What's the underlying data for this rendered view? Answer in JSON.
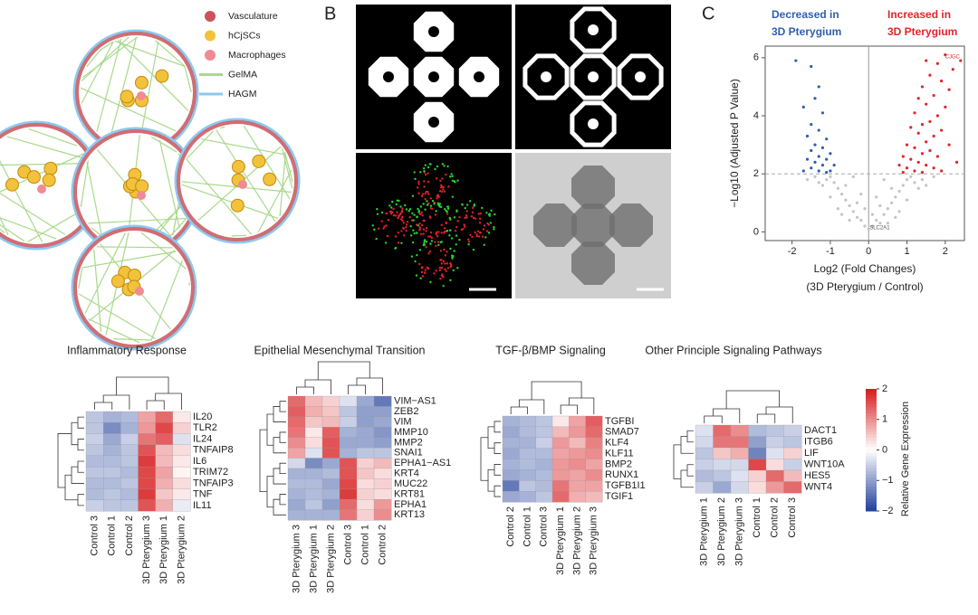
{
  "panel_labels": [
    "B",
    "C"
  ],
  "schematic_legend": [
    "Vasculature",
    "hCjSCs",
    "Macrophages",
    "GelMA",
    "HAGM"
  ],
  "volcano": {
    "type": "scatter",
    "annotations": {
      "decreased": [
        "Decreased in",
        "3D Pterygium"
      ],
      "increased": [
        "Increased in",
        "3D Pterygium"
      ]
    },
    "gene_labels": [
      "CJGC",
      "SLC2A1"
    ],
    "xlabel": [
      "Log2 (Fold Changes)",
      "(3D Pterygium / Control)"
    ],
    "ylabel": "−Log10 (Adjusted P Value)",
    "xlim": [
      -2.7,
      2.5
    ],
    "ylim": [
      -0.3,
      6.4
    ],
    "xticks": [
      -2,
      -1,
      0,
      1,
      2
    ],
    "yticks": [
      0,
      2,
      4,
      6
    ],
    "threshold": 2,
    "groups": [
      {
        "color": "#2f5fb0",
        "x": [
          -1.9,
          -1.5,
          -1.3,
          -1.4,
          -1.7,
          -1.2,
          -1.5,
          -1.3,
          -1.6,
          -1.1,
          -1.4,
          -1.2,
          -1.5,
          -1.0,
          -1.3,
          -1.6,
          -1.1,
          -1.4,
          -1.2,
          -0.9,
          -1.5,
          -1.3,
          -1.0,
          -1.7,
          -1.1
        ],
        "y": [
          5.9,
          5.7,
          5.0,
          4.6,
          4.3,
          4.1,
          3.7,
          3.5,
          3.3,
          3.2,
          3.0,
          2.9,
          2.8,
          2.7,
          2.6,
          2.5,
          2.5,
          2.4,
          2.3,
          2.3,
          2.2,
          2.1,
          2.1,
          2.1,
          2.05
        ]
      },
      {
        "color": "#e0262a",
        "x": [
          2.0,
          1.8,
          2.2,
          1.6,
          1.9,
          1.4,
          2.1,
          1.7,
          1.3,
          1.5,
          2.0,
          1.2,
          1.8,
          1.6,
          1.4,
          1.1,
          1.9,
          1.3,
          1.7,
          1.5,
          1.0,
          2.1,
          1.2,
          1.6,
          1.4,
          0.9,
          1.8,
          1.1,
          1.3,
          1.5,
          0.8,
          1.0,
          1.7,
          1.2,
          1.4,
          0.9,
          2.3,
          1.9,
          2.4,
          1.5
        ],
        "y": [
          6.1,
          5.8,
          5.6,
          5.4,
          5.2,
          5.0,
          4.9,
          4.7,
          4.6,
          4.4,
          4.3,
          4.1,
          4.0,
          3.8,
          3.7,
          3.6,
          3.5,
          3.4,
          3.3,
          3.1,
          3.0,
          3.0,
          2.9,
          2.8,
          2.7,
          2.6,
          2.6,
          2.5,
          2.4,
          2.3,
          2.3,
          2.2,
          2.2,
          2.1,
          2.05,
          2.05,
          2.4,
          2.1,
          5.9,
          5.9
        ]
      },
      {
        "color": "#c4c4c4",
        "x": [
          0,
          0.1,
          -0.1,
          0.2,
          -0.2,
          0.3,
          -0.3,
          0.4,
          -0.4,
          0.5,
          -0.5,
          0.6,
          -0.6,
          0.7,
          -0.7,
          0.8,
          -0.8,
          0.9,
          -0.9,
          1.0,
          -1.0,
          1.1,
          -1.1,
          1.2,
          -1.2,
          1.3,
          -1.3,
          1.4,
          -1.4,
          1.5,
          0.5,
          -0.5,
          0.8,
          -0.8,
          1.0,
          -1.0,
          0.3,
          -0.3,
          0.6,
          -0.6,
          0.2,
          -0.2,
          0.4,
          -0.4,
          1.7,
          -1.6,
          0.7,
          -0.7,
          0.1,
          -0.1
        ],
        "y": [
          0.1,
          0.2,
          0.2,
          0.4,
          0.4,
          0.3,
          0.5,
          0.6,
          0.7,
          0.8,
          0.9,
          1.0,
          1.1,
          1.2,
          1.3,
          1.4,
          1.5,
          1.6,
          1.7,
          1.8,
          1.9,
          1.9,
          1.8,
          1.7,
          1.6,
          1.5,
          1.7,
          1.8,
          1.9,
          1.6,
          0.3,
          0.4,
          0.7,
          0.8,
          1.1,
          1.2,
          0.9,
          1.0,
          1.5,
          1.6,
          1.2,
          1.3,
          1.8,
          1.9,
          1.9,
          1.8,
          0.5,
          0.6,
          0.6,
          0.8
        ]
      }
    ]
  },
  "heatmaps": [
    {
      "title": "Inflammatory Response",
      "columns": [
        "Control 3",
        "Control 1",
        "Control 2",
        "3D Pterygium 3",
        "3D Pterygium 1",
        "3D Pterygium 2"
      ],
      "rows": [
        "IL20",
        "TLR2",
        "IL24",
        "TNFAIP8",
        "IL6",
        "TRIM72",
        "TNFAIP3",
        "TNF",
        "IL11"
      ],
      "values": [
        [
          -0.6,
          -0.8,
          -0.7,
          0.8,
          1.3,
          0.2
        ],
        [
          -0.6,
          -1.2,
          -0.8,
          0.9,
          1.6,
          0.4
        ],
        [
          -0.5,
          -0.9,
          -0.5,
          1.2,
          1.4,
          -0.3
        ],
        [
          -0.6,
          -0.8,
          -0.6,
          1.5,
          0.6,
          0.3
        ],
        [
          -0.7,
          -0.7,
          -0.6,
          1.7,
          0.6,
          0.2
        ],
        [
          -0.6,
          -0.6,
          -0.7,
          1.6,
          0.8,
          0.1
        ],
        [
          -0.7,
          -0.7,
          -0.6,
          1.6,
          0.7,
          0.3
        ],
        [
          -0.7,
          -0.6,
          -0.7,
          1.7,
          0.5,
          0.2
        ],
        [
          -0.5,
          -0.6,
          -0.6,
          1.5,
          0.7,
          -0.2
        ]
      ]
    },
    {
      "title": "Epithelial Mesenchymal Transition",
      "columns": [
        "3D Pterygium 3",
        "3D Pterygium 1",
        "3D Pterygium 2",
        "Control 3",
        "Control 1",
        "Control 2"
      ],
      "rows": [
        "VIM−AS1",
        "ZEB2",
        "VIM",
        "MMP10",
        "MMP2",
        "SNAI1",
        "EPHA1−AS1",
        "KRT4",
        "MUC22",
        "KRT81",
        "EPHA1",
        "KRT13"
      ],
      "values": [
        [
          1.3,
          0.6,
          0.4,
          -0.3,
          -0.9,
          -1.4
        ],
        [
          1.4,
          0.7,
          0.5,
          -0.6,
          -1.0,
          -1.0
        ],
        [
          1.3,
          0.5,
          0.6,
          -0.5,
          -1.0,
          -0.9
        ],
        [
          1.2,
          0.2,
          1.4,
          -0.8,
          -0.9,
          -1.1
        ],
        [
          1.0,
          0.3,
          1.5,
          -0.9,
          -0.9,
          -1.0
        ],
        [
          0.8,
          -0.3,
          1.5,
          -0.8,
          -0.6,
          -0.6
        ],
        [
          -0.4,
          -1.2,
          -0.9,
          1.5,
          0.4,
          0.6
        ],
        [
          -0.8,
          -0.8,
          -0.7,
          1.5,
          0.5,
          0.3
        ],
        [
          -0.7,
          -0.7,
          -0.9,
          1.6,
          0.3,
          0.4
        ],
        [
          -0.8,
          -0.7,
          -0.8,
          1.7,
          0.4,
          0.3
        ],
        [
          -0.9,
          -0.6,
          -1.0,
          1.3,
          0.3,
          0.9
        ],
        [
          -0.8,
          -0.8,
          -0.8,
          1.2,
          0.4,
          1.0
        ]
      ]
    },
    {
      "title": "TGF-β/BMP Signaling",
      "columns": [
        "Control 2",
        "Control 1",
        "Control 3",
        "3D Pterygium 1",
        "3D Pterygium 2",
        "3D Pterygium 3"
      ],
      "rows": [
        "TGFBI",
        "SMAD7",
        "KLF4",
        "KLF11",
        "BMP2",
        "RUNX1",
        "TGFB1I1",
        "TGIF1"
      ],
      "values": [
        [
          -0.8,
          -0.7,
          -0.6,
          0.2,
          0.8,
          1.4
        ],
        [
          -0.9,
          -0.7,
          -0.6,
          0.6,
          0.9,
          1.3
        ],
        [
          -0.8,
          -0.8,
          -0.5,
          0.9,
          0.6,
          1.1
        ],
        [
          -0.9,
          -0.7,
          -0.7,
          0.8,
          0.9,
          1.0
        ],
        [
          -0.8,
          -0.7,
          -0.8,
          0.9,
          1.0,
          0.8
        ],
        [
          -0.9,
          -0.8,
          -0.7,
          0.9,
          0.8,
          1.0
        ],
        [
          -1.4,
          -0.6,
          -0.7,
          1.2,
          0.8,
          0.8
        ],
        [
          -0.9,
          -0.8,
          -0.6,
          1.3,
          0.7,
          0.6
        ]
      ]
    },
    {
      "title": "Other Principle Signaling Pathways",
      "columns": [
        "3D Pterygium 1",
        "3D Pterygium 2",
        "3D Pterygium 3",
        "Control 1",
        "Control 2",
        "Control 3"
      ],
      "rows": [
        "DACT1",
        "ITGB6",
        "LIF",
        "WNT10A",
        "HES5",
        "WNT4"
      ],
      "values": [
        [
          -0.3,
          1.3,
          1.0,
          -0.7,
          -0.6,
          -0.5
        ],
        [
          -0.4,
          1.2,
          1.2,
          -1.0,
          -0.5,
          -0.6
        ],
        [
          -0.6,
          0.5,
          0.7,
          -1.3,
          -0.3,
          0.4
        ],
        [
          -0.5,
          -0.4,
          -0.4,
          1.6,
          0.3,
          -0.5
        ],
        [
          -0.7,
          -0.6,
          -0.3,
          0.4,
          1.3,
          0.6
        ],
        [
          -0.5,
          -0.9,
          -0.4,
          0.3,
          0.9,
          1.3
        ]
      ]
    }
  ],
  "colorbar": {
    "label": "Relative Gene Expression",
    "lim": [
      -2,
      2
    ],
    "ticks": [
      2,
      1,
      0,
      {
        "value": -1,
        "label": "−1"
      },
      {
        "value": -2,
        "label": "−2"
      }
    ]
  }
}
